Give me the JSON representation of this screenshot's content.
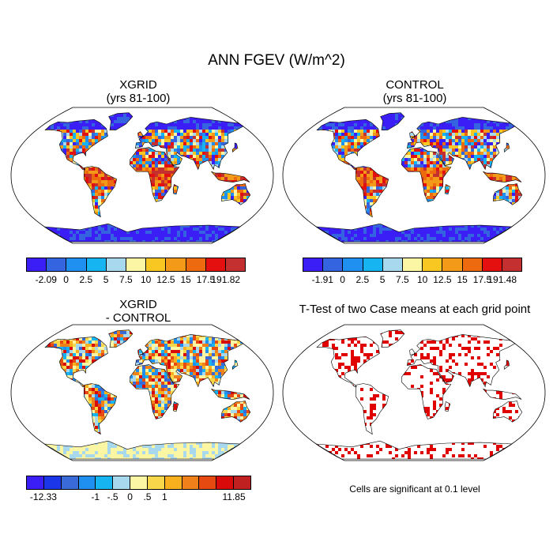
{
  "figure": {
    "title": "ANN FGEV (W/m^2)"
  },
  "panels": [
    {
      "id": "xgrid",
      "title_line1": "XGRID",
      "title_line2": "(yrs 81-100)",
      "colorbar": {
        "colors": [
          "#3b1ef5",
          "#3464e0",
          "#1f8ff0",
          "#16b4f0",
          "#a8d8ee",
          "#fbf6a4",
          "#f8c722",
          "#f39a18",
          "#ee6a0e",
          "#e41010",
          "#c43030"
        ],
        "tick_labels": [
          "-2.09",
          "0",
          "2.5",
          "5",
          "7.5",
          "10",
          "12.5",
          "15",
          "17.5",
          "191.82"
        ]
      }
    },
    {
      "id": "control",
      "title_line1": "CONTROL",
      "title_line2": "(yrs 81-100)",
      "colorbar": {
        "colors": [
          "#3b1ef5",
          "#3464e0",
          "#1f8ff0",
          "#16b4f0",
          "#a8d8ee",
          "#fbf6a4",
          "#f8c722",
          "#f39a18",
          "#ee6a0e",
          "#e41010",
          "#c43030"
        ],
        "tick_labels": [
          "-1.91",
          "0",
          "2.5",
          "5",
          "7.5",
          "10",
          "12.5",
          "15",
          "17.5",
          "191.48"
        ]
      }
    },
    {
      "id": "difference",
      "title_line1": "XGRID",
      "title_line2": "- CONTROL",
      "colorbar": {
        "colors": [
          "#3b1ef5",
          "#1a36e8",
          "#3a6ad8",
          "#1f8ff0",
          "#16b4f0",
          "#a8d8ee",
          "#fbf6a4",
          "#f8d74a",
          "#f8b01e",
          "#f0801a",
          "#e64a10",
          "#d80a0a",
          "#c02020"
        ],
        "tick_labels": [
          "-12.33",
          "-1",
          "-.5",
          "0",
          ".5",
          "1",
          "11.85"
        ]
      }
    },
    {
      "id": "ttest",
      "title_line1": "T-Test of two Case means at each grid point",
      "note": "Cells are significant at 0.1 level",
      "significant_color": "#e00000"
    }
  ]
}
